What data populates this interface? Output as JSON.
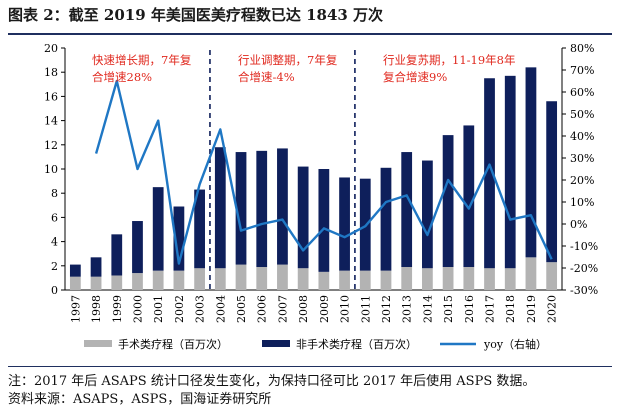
{
  "title": "图表 2：截至 2019 年美国医美疗程数已达 1843 万次",
  "note": "注：2017 年后 ASAPS 统计口径发生变化，为保持口径可比 2017 年后使用 ASPS 数据。",
  "source": "资料来源：ASAPS，ASPS，国海证券研究所",
  "chart_data": {
    "type": "bar",
    "categories": [
      "1997",
      "1998",
      "1999",
      "2000",
      "2001",
      "2002",
      "2003",
      "2004",
      "2005",
      "2006",
      "2007",
      "2008",
      "2009",
      "2010",
      "2011",
      "2012",
      "2013",
      "2014",
      "2015",
      "2016",
      "2017",
      "2018",
      "2019",
      "2020"
    ],
    "series": [
      {
        "name": "手术类疗程（百万次）",
        "chart": "stacked-bar",
        "axis": "left",
        "color": "#b3b3b3",
        "values": [
          1.1,
          1.1,
          1.2,
          1.4,
          1.6,
          1.6,
          1.8,
          1.8,
          2.1,
          1.9,
          2.1,
          1.8,
          1.5,
          1.6,
          1.6,
          1.6,
          1.9,
          1.8,
          1.9,
          1.9,
          1.8,
          1.8,
          2.7,
          2.3
        ]
      },
      {
        "name": "非手术类疗程（百万次）",
        "chart": "stacked-bar",
        "axis": "left",
        "color": "#0e1f5b",
        "values": [
          1.0,
          1.6,
          3.4,
          4.3,
          6.9,
          5.3,
          6.5,
          10.0,
          9.3,
          9.6,
          9.6,
          8.4,
          8.5,
          7.7,
          7.6,
          8.5,
          9.5,
          8.9,
          10.9,
          11.7,
          15.7,
          15.9,
          15.7,
          13.3
        ]
      },
      {
        "name": "yoy（右轴）",
        "chart": "line",
        "axis": "right",
        "color": "#1f77c4",
        "values": [
          null,
          32,
          65,
          25,
          47,
          -18,
          18,
          43,
          -3,
          0,
          2,
          -12,
          -2,
          -6,
          -1,
          10,
          13,
          -5,
          20,
          7,
          27,
          2,
          4,
          -16
        ]
      }
    ],
    "ylim": [
      0,
      20
    ],
    "y_ticks": [
      "0",
      "2",
      "4",
      "6",
      "8",
      "10",
      "12",
      "14",
      "16",
      "18",
      "20"
    ],
    "y2lim": [
      -30,
      80
    ],
    "y2_ticks": [
      "-30%",
      "-20%",
      "-10%",
      "0%",
      "10%",
      "20%",
      "30%",
      "40%",
      "50%",
      "60%",
      "70%",
      "80%"
    ],
    "dividers_after": [
      "2003",
      "2010"
    ],
    "annotations": [
      {
        "lines": [
          "快速增长期，7年复",
          "合增速28%"
        ],
        "period": "1997-2003"
      },
      {
        "lines": [
          "行业调整期，7年复",
          "合增速-4%"
        ],
        "period": "2004-2010"
      },
      {
        "lines": [
          "行业复苏期，11-19年8年",
          "复合增速9%"
        ],
        "period": "2011-2019"
      }
    ],
    "legend_position": "bottom"
  }
}
